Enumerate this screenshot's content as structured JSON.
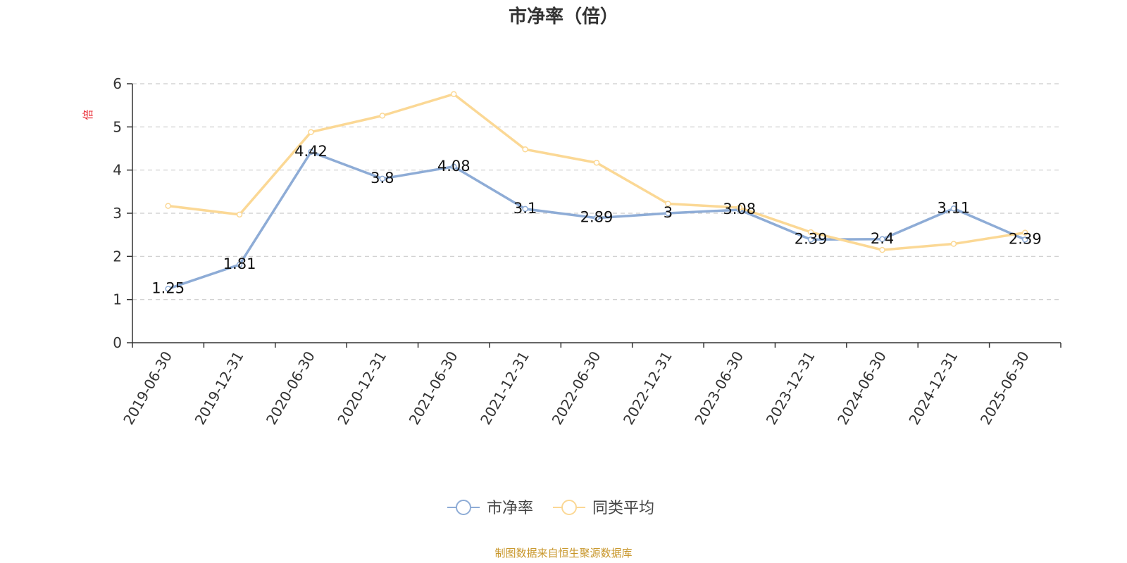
{
  "title": "市净率（倍）",
  "source": "制图数据来自恒生聚源数据库",
  "chart_data": {
    "type": "line",
    "title": "市净率（倍）",
    "ylabel": "倍",
    "xlabel": "",
    "ylim": [
      0,
      6
    ],
    "yticks": [
      0,
      1,
      2,
      3,
      4,
      5,
      6
    ],
    "grid": true,
    "legend_position": "bottom",
    "categories": [
      "2019-06-30",
      "2019-12-31",
      "2020-06-30",
      "2020-12-31",
      "2021-06-30",
      "2021-12-31",
      "2022-06-30",
      "2022-12-31",
      "2023-06-30",
      "2023-12-31",
      "2024-06-30",
      "2024-12-31",
      "2025-06-30"
    ],
    "series": [
      {
        "name": "市净率",
        "color": "#8eacd6",
        "values": [
          1.25,
          1.81,
          4.42,
          3.8,
          4.08,
          3.1,
          2.89,
          3,
          3.08,
          2.39,
          2.4,
          3.11,
          2.39
        ],
        "labels": [
          "1.25",
          "1.81",
          "4.42",
          "3.8",
          "4.08",
          "3.1",
          "2.89",
          "3",
          "3.08",
          "2.39",
          "2.4",
          "3.11",
          "2.39"
        ]
      },
      {
        "name": "同类平均",
        "color": "#fbd895",
        "values": [
          3.17,
          2.97,
          4.88,
          5.26,
          5.76,
          4.48,
          4.17,
          3.22,
          3.13,
          2.56,
          2.15,
          2.29,
          2.55
        ]
      }
    ]
  }
}
